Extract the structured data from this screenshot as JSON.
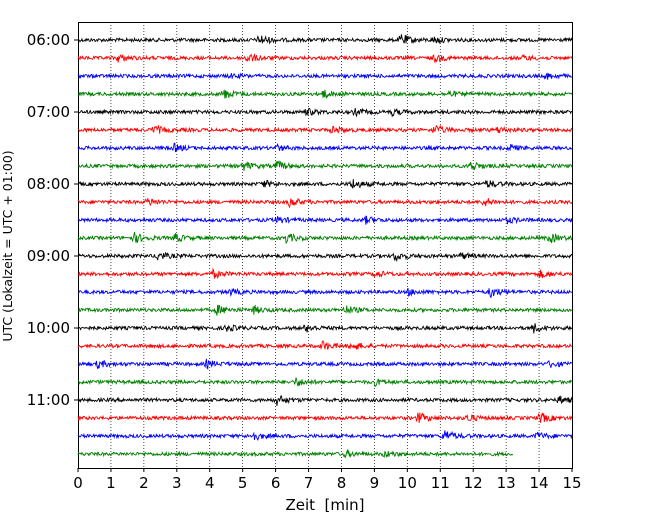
{
  "chart_data": {
    "type": "line",
    "title": "",
    "xlabel": "Zeit  [min]",
    "ylabel": "UTC (Lokalzeit = UTC + 01:00)",
    "xlim": [
      0,
      15
    ],
    "x_ticks": [
      "0",
      "1",
      "2",
      "3",
      "4",
      "5",
      "6",
      "7",
      "8",
      "9",
      "10",
      "11",
      "12",
      "13",
      "14",
      "15"
    ],
    "y_ticks": [
      {
        "label": "06:00",
        "row": 0
      },
      {
        "label": "07:00",
        "row": 4
      },
      {
        "label": "08:00",
        "row": 8
      },
      {
        "label": "09:00",
        "row": 12
      },
      {
        "label": "10:00",
        "row": 16
      },
      {
        "label": "11:00",
        "row": 20
      }
    ],
    "rows": 24,
    "row_interval_minutes": 15,
    "grid_x": true,
    "grid_style": "dotted",
    "colors": [
      "#000000",
      "#ff0000",
      "#0000ff",
      "#008000"
    ],
    "last_trace_end_minute": 13.2,
    "events": [
      {
        "row": 0,
        "t": 5.5,
        "a": 0.9
      },
      {
        "row": 0,
        "t": 9.8,
        "a": 1.0
      },
      {
        "row": 0,
        "t": 10.8,
        "a": 0.5
      },
      {
        "row": 1,
        "t": 1.2,
        "a": 0.6
      },
      {
        "row": 1,
        "t": 5.1,
        "a": 0.8
      },
      {
        "row": 1,
        "t": 10.8,
        "a": 0.6
      },
      {
        "row": 1,
        "t": 13.5,
        "a": 0.4
      },
      {
        "row": 2,
        "t": 4.6,
        "a": 0.3
      },
      {
        "row": 2,
        "t": 14.2,
        "a": 0.5
      },
      {
        "row": 3,
        "t": 4.4,
        "a": 0.8
      },
      {
        "row": 3,
        "t": 7.4,
        "a": 0.7
      },
      {
        "row": 3,
        "t": 11.2,
        "a": 0.5
      },
      {
        "row": 4,
        "t": 6.9,
        "a": 0.6
      },
      {
        "row": 4,
        "t": 8.4,
        "a": 0.5
      },
      {
        "row": 4,
        "t": 9.5,
        "a": 0.5
      },
      {
        "row": 5,
        "t": 2.3,
        "a": 0.7
      },
      {
        "row": 5,
        "t": 7.7,
        "a": 0.6
      },
      {
        "row": 5,
        "t": 10.8,
        "a": 0.9
      },
      {
        "row": 5,
        "t": 12.7,
        "a": 0.6
      },
      {
        "row": 6,
        "t": 2.9,
        "a": 0.6
      },
      {
        "row": 6,
        "t": 6.0,
        "a": 0.5
      },
      {
        "row": 6,
        "t": 13.1,
        "a": 0.5
      },
      {
        "row": 7,
        "t": 5.0,
        "a": 0.7
      },
      {
        "row": 7,
        "t": 6.0,
        "a": 0.8
      },
      {
        "row": 7,
        "t": 11.9,
        "a": 0.8
      },
      {
        "row": 8,
        "t": 5.6,
        "a": 0.6
      },
      {
        "row": 8,
        "t": 8.3,
        "a": 0.9
      },
      {
        "row": 8,
        "t": 12.4,
        "a": 0.6
      },
      {
        "row": 9,
        "t": 2.1,
        "a": 0.6
      },
      {
        "row": 9,
        "t": 6.4,
        "a": 0.8
      },
      {
        "row": 9,
        "t": 12.3,
        "a": 0.7
      },
      {
        "row": 10,
        "t": 6.0,
        "a": 0.6
      },
      {
        "row": 10,
        "t": 8.7,
        "a": 0.6
      },
      {
        "row": 10,
        "t": 13.0,
        "a": 0.5
      },
      {
        "row": 11,
        "t": 1.7,
        "a": 0.8
      },
      {
        "row": 11,
        "t": 2.9,
        "a": 0.7
      },
      {
        "row": 11,
        "t": 6.3,
        "a": 0.8
      },
      {
        "row": 11,
        "t": 14.3,
        "a": 0.8
      },
      {
        "row": 12,
        "t": 2.4,
        "a": 0.7
      },
      {
        "row": 12,
        "t": 9.6,
        "a": 0.8
      },
      {
        "row": 12,
        "t": 11.6,
        "a": 0.5
      },
      {
        "row": 13,
        "t": 4.1,
        "a": 0.6
      },
      {
        "row": 13,
        "t": 9.0,
        "a": 0.6
      },
      {
        "row": 13,
        "t": 14.0,
        "a": 0.6
      },
      {
        "row": 14,
        "t": 4.6,
        "a": 0.5
      },
      {
        "row": 14,
        "t": 10.0,
        "a": 0.5
      },
      {
        "row": 14,
        "t": 12.5,
        "a": 0.9
      },
      {
        "row": 15,
        "t": 4.2,
        "a": 0.8
      },
      {
        "row": 15,
        "t": 5.3,
        "a": 0.6
      },
      {
        "row": 15,
        "t": 8.1,
        "a": 0.7
      },
      {
        "row": 16,
        "t": 4.5,
        "a": 0.5
      },
      {
        "row": 16,
        "t": 6.9,
        "a": 0.6
      },
      {
        "row": 16,
        "t": 13.8,
        "a": 0.8
      },
      {
        "row": 17,
        "t": 7.4,
        "a": 0.8
      },
      {
        "row": 17,
        "t": 8.3,
        "a": 0.7
      },
      {
        "row": 18,
        "t": 0.6,
        "a": 0.6
      },
      {
        "row": 18,
        "t": 3.9,
        "a": 0.6
      },
      {
        "row": 18,
        "t": 14.3,
        "a": 0.6
      },
      {
        "row": 19,
        "t": 6.6,
        "a": 0.7
      },
      {
        "row": 19,
        "t": 9.0,
        "a": 0.5
      },
      {
        "row": 20,
        "t": 6.0,
        "a": 0.9
      },
      {
        "row": 20,
        "t": 14.6,
        "a": 0.6
      },
      {
        "row": 21,
        "t": 10.3,
        "a": 0.9
      },
      {
        "row": 21,
        "t": 14.0,
        "a": 0.9
      },
      {
        "row": 21,
        "t": 11.8,
        "a": 0.6
      },
      {
        "row": 22,
        "t": 5.3,
        "a": 0.7
      },
      {
        "row": 22,
        "t": 11.1,
        "a": 1.0
      },
      {
        "row": 22,
        "t": 13.9,
        "a": 0.6
      },
      {
        "row": 23,
        "t": 8.1,
        "a": 0.5
      },
      {
        "row": 23,
        "t": 9.3,
        "a": 0.5
      }
    ]
  }
}
